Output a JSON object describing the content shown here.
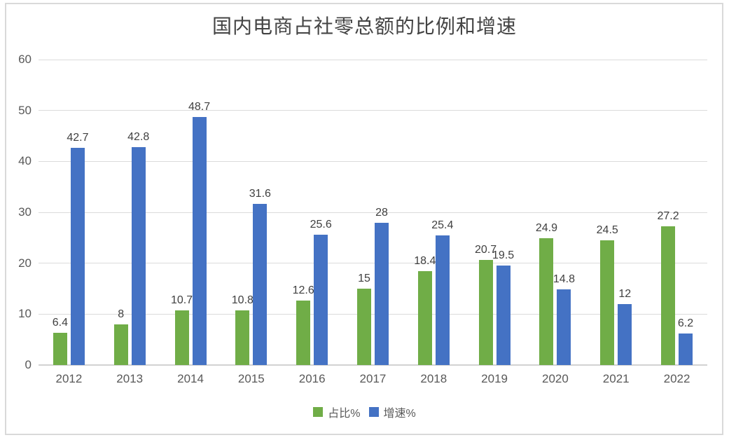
{
  "chart_data": {
    "type": "bar",
    "title": "国内电商占社零总额的比例和增速",
    "categories": [
      "2012",
      "2013",
      "2014",
      "2015",
      "2016",
      "2017",
      "2018",
      "2019",
      "2020",
      "2021",
      "2022"
    ],
    "series": [
      {
        "name": "占比%",
        "color": "#70AD47",
        "values": [
          6.4,
          8,
          10.7,
          10.8,
          12.6,
          15,
          18.4,
          20.7,
          24.9,
          24.5,
          27.2
        ]
      },
      {
        "name": "增速%",
        "color": "#4472C4",
        "values": [
          42.7,
          42.8,
          48.7,
          31.6,
          25.6,
          28,
          25.4,
          19.5,
          14.8,
          12,
          6.2
        ]
      }
    ],
    "xlabel": "",
    "ylabel": "",
    "ylim": [
      0,
      60
    ],
    "yticks": [
      0,
      10,
      20,
      30,
      40,
      50,
      60
    ],
    "grid": true,
    "data_labels": true,
    "legend_position": "bottom"
  }
}
